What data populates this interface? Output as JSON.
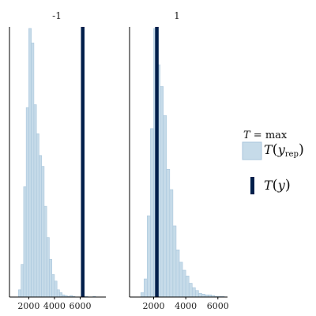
{
  "chart_data": {
    "type": "histogram",
    "description_free": true,
    "facets": [
      {
        "title": "-1",
        "xlim": [
          500,
          8000
        ],
        "xticks": [
          2000,
          4000,
          6000
        ],
        "xtick_labels": [
          "2000",
          "4000",
          "6000"
        ],
        "bin_width": 200,
        "bins_start": 1200,
        "counts": [
          10,
          45,
          152,
          261,
          370,
          350,
          265,
          225,
          195,
          180,
          125,
          82,
          52,
          31,
          22,
          10,
          6,
          3,
          2,
          1,
          2,
          1,
          0,
          0,
          0,
          1,
          1,
          0,
          0,
          1
        ],
        "observed": 6200
      },
      {
        "title": "1",
        "xlim": [
          500,
          6600
        ],
        "xticks": [
          2000,
          4000,
          6000
        ],
        "xtick_labels": [
          "2000",
          "4000",
          "6000"
        ],
        "bin_width": 200,
        "bins_start": 1200,
        "counts": [
          6,
          25,
          112,
          232,
          370,
          320,
          290,
          250,
          176,
          148,
          98,
          65,
          48,
          37,
          29,
          19,
          13,
          9,
          5,
          4,
          3,
          3,
          2,
          1,
          1,
          1
        ],
        "observed": 2200
      }
    ],
    "ylim": [
      0,
      370
    ],
    "legend": {
      "position": "right",
      "title_T": "T",
      "title_rest": " = max",
      "rep_T": "T",
      "rep_y": "y",
      "rep_sub": "rep",
      "obs_T": "T",
      "obs_y": "y"
    },
    "colors": {
      "bar_fill": "#c6dbe9",
      "bar_stroke": "#a9c6dc",
      "observed_line": "#011f4b",
      "axis": "#000000"
    }
  }
}
